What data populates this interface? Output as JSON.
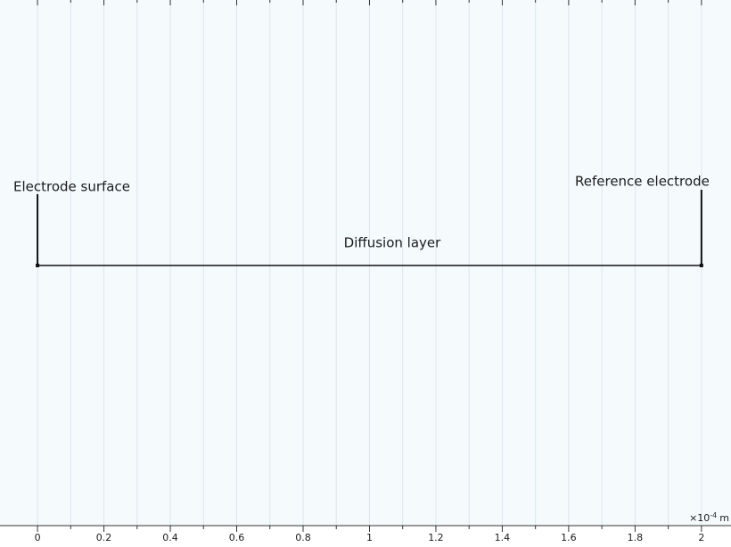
{
  "geometry": {
    "interval": [
      0,
      2
    ],
    "labels": {
      "left": "Electrode surface",
      "right": "Reference electrode",
      "middle": "Diffusion layer"
    }
  },
  "axis": {
    "xlim": [
      -0.113,
      2.089
    ],
    "xticks": [
      0,
      0.2,
      0.4,
      0.6,
      0.8,
      1,
      1.2,
      1.4,
      1.6,
      1.8,
      2
    ],
    "minor_ticks": [
      0.1,
      0.3,
      0.5,
      0.7,
      0.9,
      1.1,
      1.3,
      1.5,
      1.7,
      1.9
    ],
    "scale_label": {
      "prefix": "×10",
      "exponent": "-4",
      "unit": "m"
    }
  }
}
